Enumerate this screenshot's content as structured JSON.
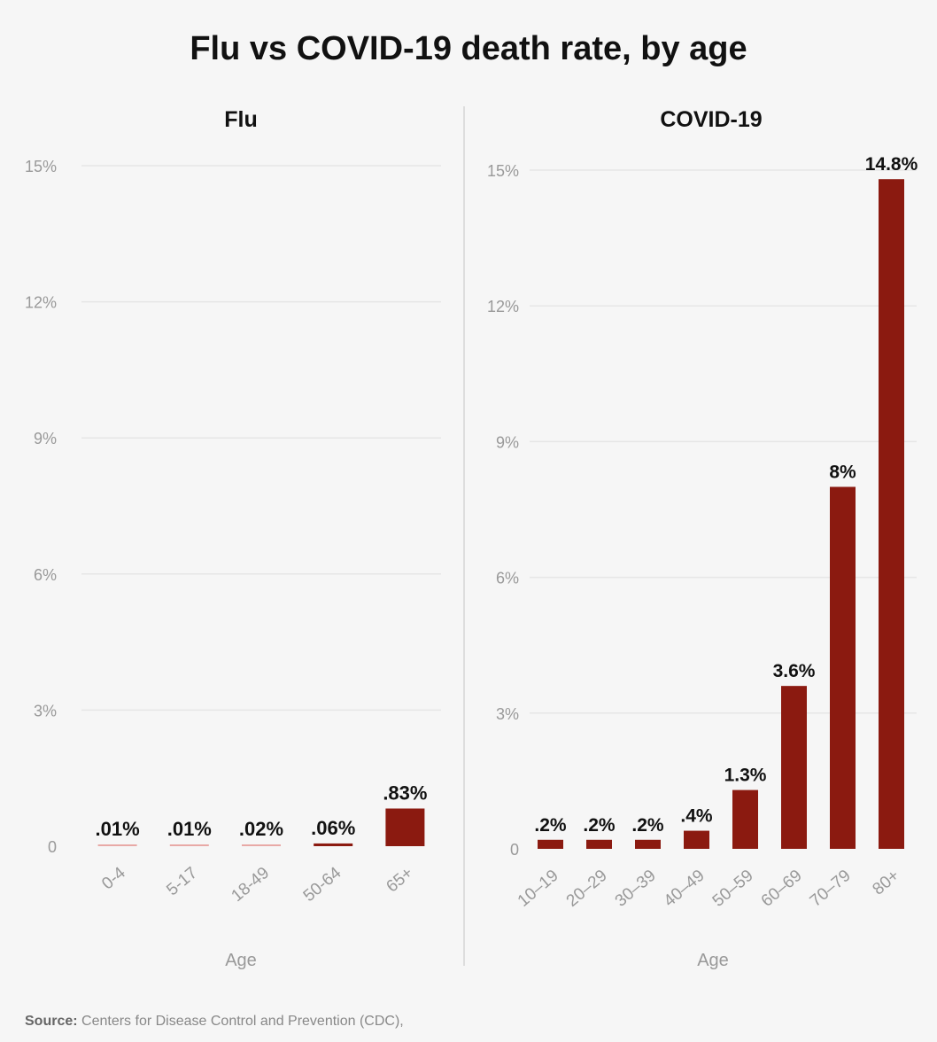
{
  "title": "Flu vs COVID-19 death rate, by age",
  "source_label": "Source:",
  "source_text": "Centers for Disease Control and Prevention (CDC),",
  "colors": {
    "bar": "#8b1a10",
    "grid": "#e6e6e6",
    "tick": "#999999",
    "divider": "#dddddd",
    "label": "#111111"
  },
  "chart_data": [
    {
      "type": "bar",
      "title": "Flu",
      "xlabel": "Age",
      "ylabel": "",
      "ylim": [
        0,
        15
      ],
      "yticks": [
        {
          "value": 0,
          "label": "0"
        },
        {
          "value": 3,
          "label": "3%"
        },
        {
          "value": 6,
          "label": "6%"
        },
        {
          "value": 9,
          "label": "9%"
        },
        {
          "value": 12,
          "label": "12%"
        },
        {
          "value": 15,
          "label": "15%"
        }
      ],
      "categories": [
        "0-4",
        "5-17",
        "18-49",
        "50-64",
        "65+"
      ],
      "values": [
        0.01,
        0.01,
        0.02,
        0.06,
        0.83
      ],
      "data_labels": [
        ".01%",
        ".01%",
        ".02%",
        ".06%",
        ".83%"
      ]
    },
    {
      "type": "bar",
      "title": "COVID-19",
      "xlabel": "Age",
      "ylabel": "",
      "ylim": [
        0,
        15
      ],
      "yticks": [
        {
          "value": 0,
          "label": "0"
        },
        {
          "value": 3,
          "label": "3%"
        },
        {
          "value": 6,
          "label": "6%"
        },
        {
          "value": 9,
          "label": "9%"
        },
        {
          "value": 12,
          "label": "12%"
        },
        {
          "value": 15,
          "label": "15%"
        }
      ],
      "categories": [
        "10–19",
        "20–29",
        "30–39",
        "40–49",
        "50–59",
        "60–69",
        "70–79",
        "80+"
      ],
      "values": [
        0.2,
        0.2,
        0.2,
        0.4,
        1.3,
        3.6,
        8,
        14.8
      ],
      "data_labels": [
        ".2%",
        ".2%",
        ".2%",
        ".4%",
        "1.3%",
        "3.6%",
        "8%",
        "14.8%"
      ]
    }
  ]
}
